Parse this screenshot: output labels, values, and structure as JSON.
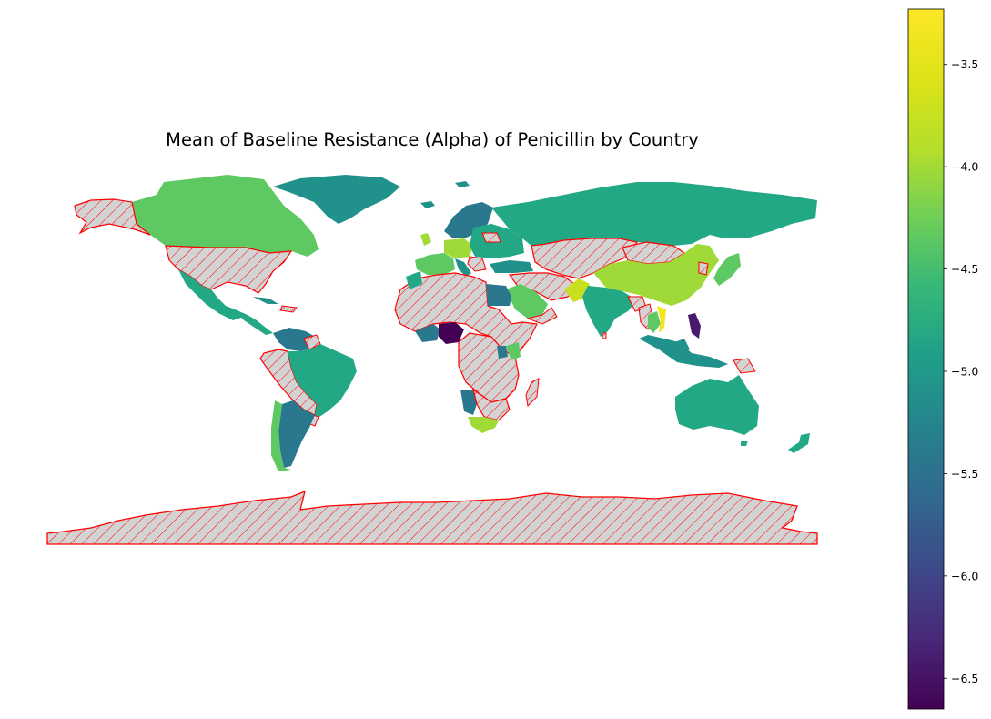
{
  "title": "Mean of Baseline Resistance (Alpha) of Penicillin by Country",
  "colorbar": {
    "colormap": "viridis",
    "min": -6.65,
    "max": -3.23,
    "ticks": [
      "−3.5",
      "−4.0",
      "−4.5",
      "−5.0",
      "−5.5",
      "−6.0",
      "−6.5"
    ],
    "tick_values": [
      -3.5,
      -4.0,
      -4.5,
      -5.0,
      -5.5,
      -6.0,
      -6.5
    ]
  },
  "missing_style": {
    "fill": "#d3d3d3",
    "edge": "#ff0000",
    "hatch": "///"
  },
  "colors": {
    "c_green": "#5ec962",
    "c_lightgreen": "#a0da39",
    "c_yellowgreen": "#c8e020",
    "c_yellow": "#f5e51e",
    "c_teal": "#21918c",
    "c_teal2": "#22a884",
    "c_blueteal": "#2a788e",
    "c_blue": "#3b528b",
    "c_purple": "#440154",
    "c_darkpurple": "#481a6c"
  }
}
